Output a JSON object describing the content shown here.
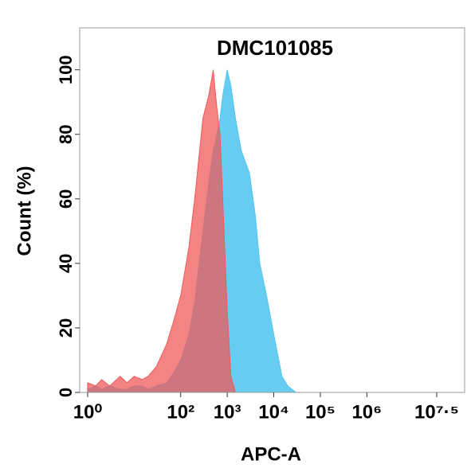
{
  "chart_data": {
    "type": "area",
    "title": "DMC101085",
    "xlabel": "APC-A",
    "ylabel": "Count  (%)",
    "log_x": true,
    "x": [
      1,
      1.5,
      2,
      3,
      5,
      7,
      10,
      15,
      20,
      30,
      50,
      70,
      100,
      150,
      200,
      300,
      400,
      500,
      600,
      700,
      800,
      1000,
      1200,
      1500,
      2000,
      3000,
      4000,
      5000,
      7000,
      10000,
      15000,
      20000,
      30000
    ],
    "series": [
      {
        "name": "Blue",
        "color": "#55c6ef",
        "values": [
          1,
          2,
          1,
          2,
          1,
          1,
          2,
          2,
          1,
          2,
          3,
          6,
          10,
          18,
          28,
          50,
          65,
          75,
          80,
          85,
          92,
          100,
          95,
          85,
          75,
          68,
          55,
          40,
          30,
          18,
          5,
          2,
          0
        ]
      },
      {
        "name": "Red",
        "color": "#f05a5a",
        "values": [
          3,
          2,
          4,
          2,
          5,
          3,
          5,
          4,
          5,
          8,
          15,
          22,
          30,
          45,
          60,
          85,
          92,
          100,
          88,
          80,
          60,
          25,
          5,
          0,
          0,
          0,
          0,
          0,
          0,
          0,
          0,
          0,
          0
        ]
      }
    ],
    "xlim": [
      0.676,
      126000000
    ],
    "xticks": [
      {
        "value": 1,
        "label": "10⁰"
      },
      {
        "value": 100,
        "label": "10²"
      },
      {
        "value": 1000,
        "label": "10³"
      },
      {
        "value": 10000,
        "label": "10⁴"
      },
      {
        "value": 100000,
        "label": "10⁵"
      },
      {
        "value": 1000000,
        "label": "10⁶"
      },
      {
        "value": 31622777,
        "label": "10⁷·⁵"
      }
    ],
    "ylim": [
      0,
      113
    ],
    "yticks": [
      0,
      20,
      40,
      60,
      80,
      100
    ]
  }
}
